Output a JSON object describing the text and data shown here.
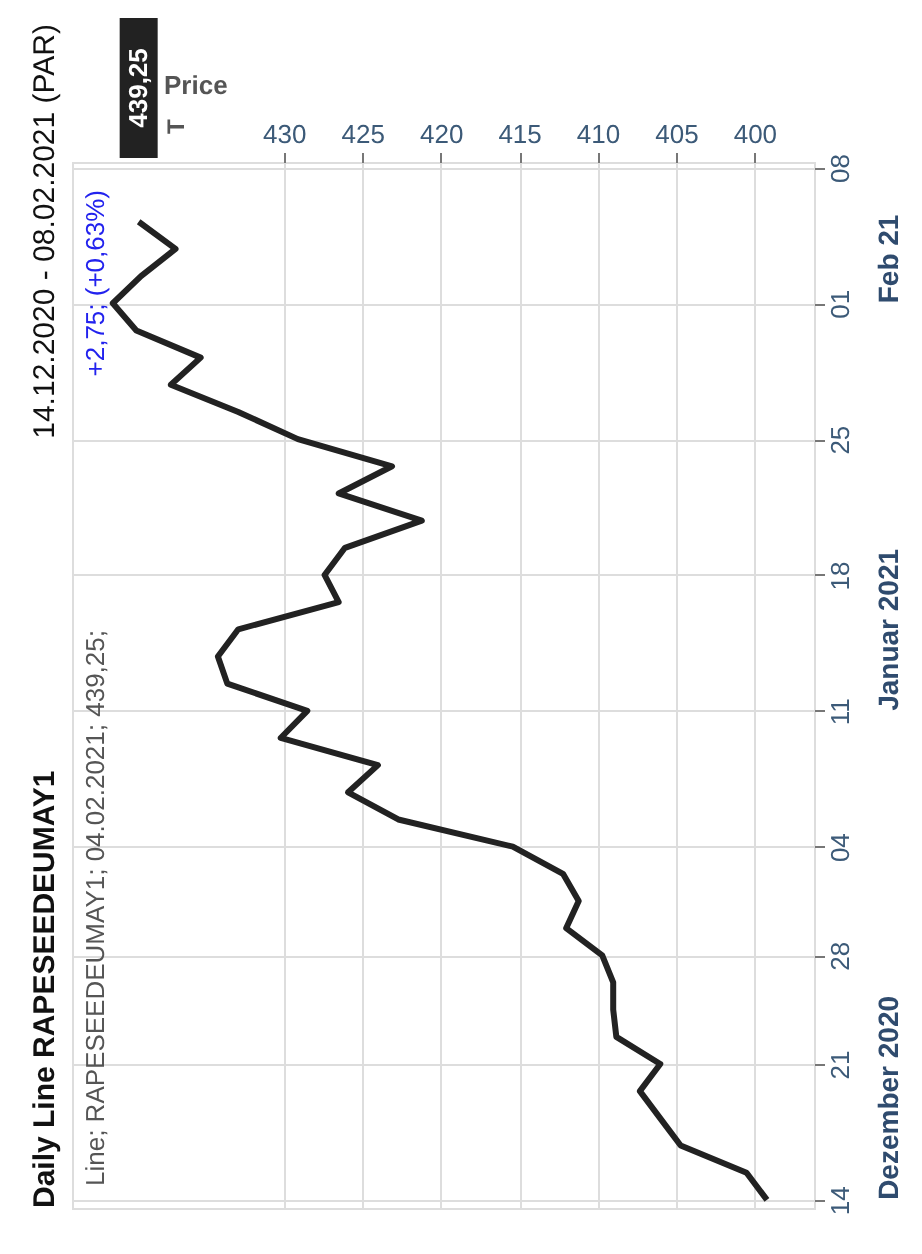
{
  "chart_data": {
    "type": "line",
    "orientation": "horizontal",
    "title": "Daily Line RAPESEEDEUMAY1",
    "subtitle": "Line; RAPESEEDEUMAY1; 04.02.2021; 439,25;",
    "xlabel": "Price",
    "categories": [
      "08",
      null,
      null,
      null,
      null,
      "01",
      null,
      null,
      null,
      null,
      "25",
      null,
      null,
      null,
      null,
      "18",
      null,
      null,
      null,
      null,
      "11",
      null,
      null,
      null,
      null,
      "04",
      null,
      null,
      null,
      "28",
      null,
      null,
      null,
      "21",
      null,
      null,
      null,
      null,
      "14"
    ],
    "series": [
      {
        "color": "#222222",
        "values": [
          null,
          null,
          439.25,
          436.9,
          439.1,
          440.9,
          439.4,
          435.3,
          437.2,
          432.9,
          429.1,
          423.1,
          426.5,
          421.2,
          426.1,
          427.4,
          426.5,
          432.9,
          434.2,
          433.6,
          428.5,
          430.2,
          424.0,
          425.9,
          422.7,
          415.4,
          412.2,
          411.2,
          412.0,
          409.7,
          409.0,
          409.0,
          408.8,
          406.0,
          407.3,
          406.0,
          404.7,
          400.5,
          399.2
        ]
      }
    ],
    "xlim": [
      443.5,
      396.2
    ],
    "xticks": [
      430,
      425,
      420,
      415,
      410,
      405,
      400
    ],
    "grid": true,
    "annotations": [
      "14.12.2020 - 08.02.2021 (PAR)",
      {
        "text": "+2,75; (+0,63%)"
      },
      {
        "text": "439,25",
        "x": 439.25
      },
      "T",
      "Dezember 2020",
      "Januar 2021",
      "Feb 21"
    ]
  }
}
